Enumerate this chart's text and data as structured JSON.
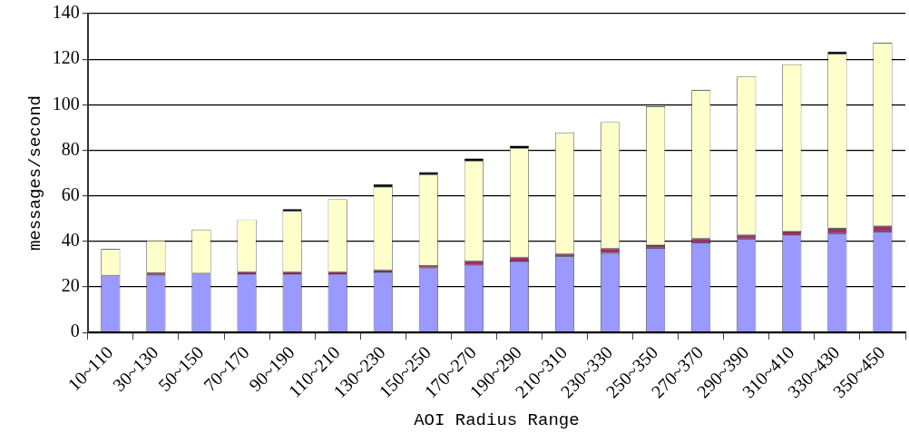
{
  "chart_data": {
    "type": "bar",
    "stacked": true,
    "xlabel": "AOI Radius Range",
    "ylabel": "messages/second",
    "categories": [
      "10~110",
      "30~130",
      "50~150",
      "70~170",
      "90~190",
      "110~210",
      "130~230",
      "150~250",
      "170~270",
      "190~290",
      "210~310",
      "230~330",
      "250~350",
      "270~370",
      "290~390",
      "310~410",
      "330~430",
      "350~450"
    ],
    "series": [
      {
        "color": "#9999ff",
        "values": [
          25,
          25,
          25.9,
          25.6,
          25.6,
          25.6,
          26.4,
          28.2,
          29.4,
          31.2,
          33.3,
          34.8,
          37.1,
          39.5,
          41,
          42.5,
          43.4,
          44.3
        ]
      },
      {
        "color": "#993366",
        "values": [
          null,
          1,
          null,
          1,
          1,
          1,
          1,
          1,
          2,
          1.8,
          1.2,
          2.1,
          1.2,
          1.8,
          1.8,
          1.8,
          2.4,
          2.4
        ]
      },
      {
        "color": "#ffffcc",
        "values": [
          11.6,
          14.4,
          19.3,
          23,
          26.6,
          31.9,
          36.5,
          40,
          43.8,
          47.8,
          53.2,
          55.5,
          61,
          65.1,
          69.6,
          73.4,
          76.4,
          80.5
        ]
      },
      {
        "color": "#000000",
        "values": [
          null,
          null,
          null,
          null,
          1,
          null,
          1.2,
          1.2,
          1.2,
          1.2,
          null,
          null,
          null,
          null,
          null,
          null,
          1.2,
          null
        ]
      }
    ],
    "ylim": [
      0,
      140
    ],
    "yticks": [
      0,
      20,
      40,
      60,
      80,
      100,
      120,
      140
    ],
    "grid": "y",
    "legend": false
  }
}
